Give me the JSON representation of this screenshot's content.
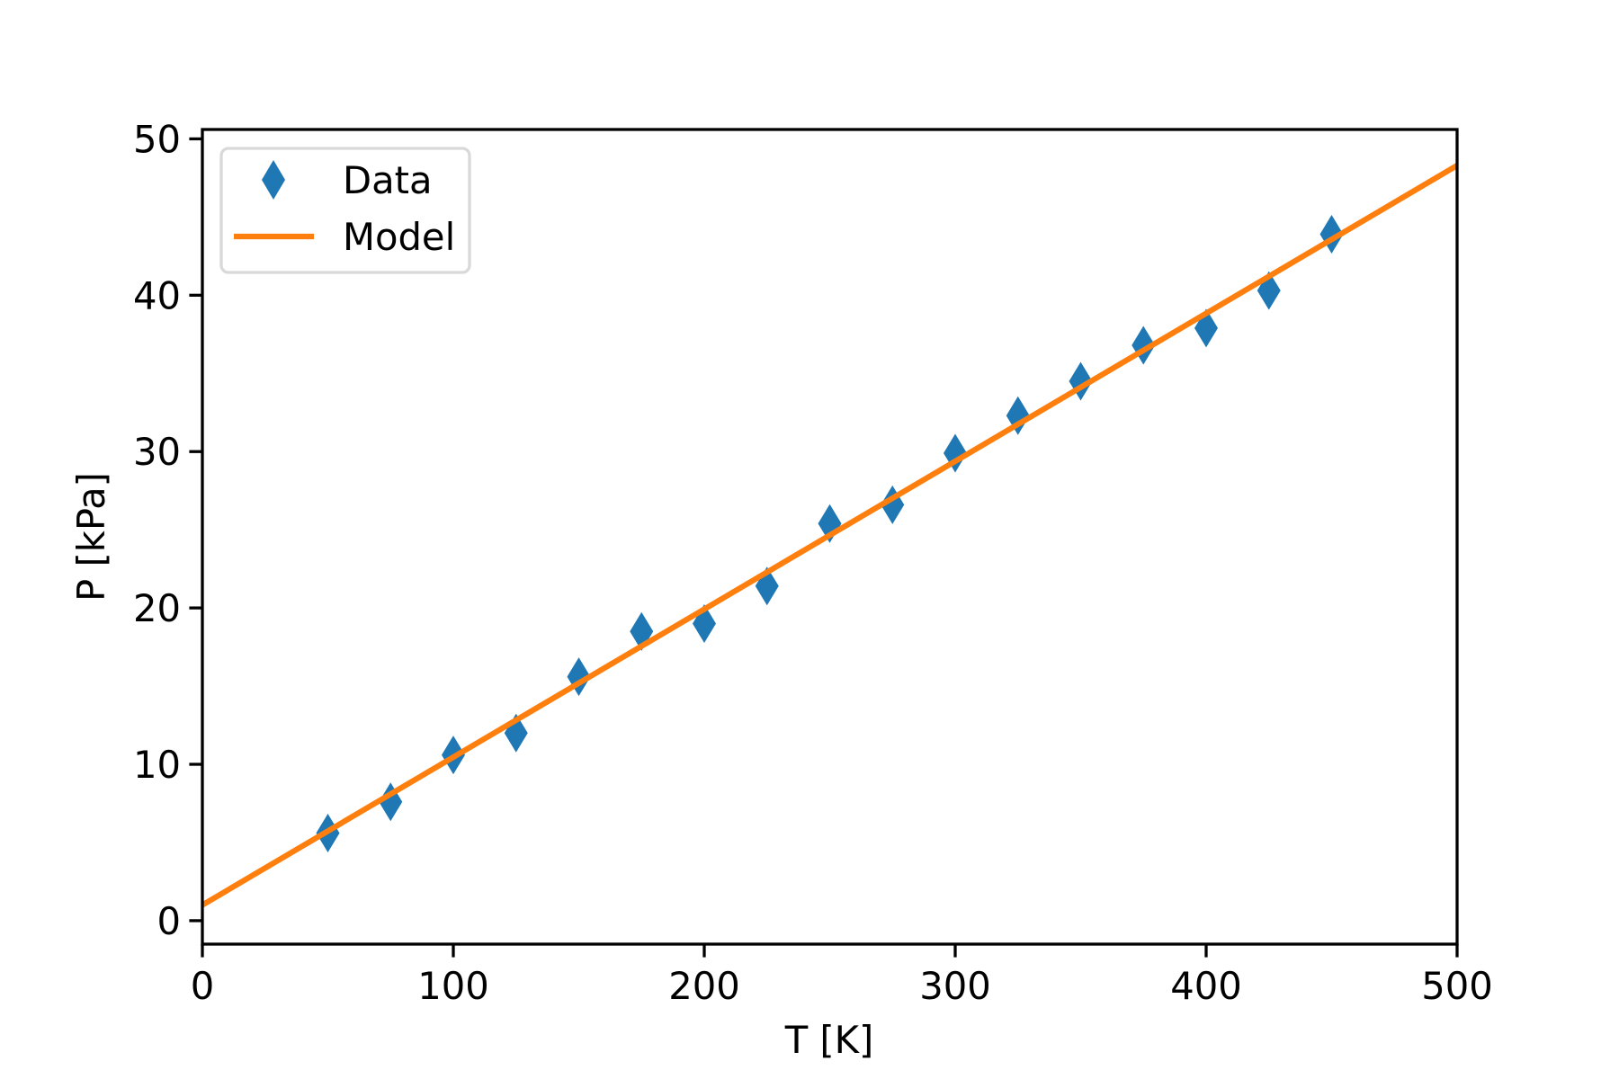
{
  "chart_data": {
    "type": "scatter",
    "title": "",
    "xlabel": "T [K]",
    "ylabel": "P [kPa]",
    "xlim": [
      0,
      500
    ],
    "ylim": [
      -1.5,
      50.6
    ],
    "xticks": [
      0,
      100,
      200,
      300,
      400,
      500
    ],
    "yticks": [
      0,
      10,
      20,
      30,
      40,
      50
    ],
    "grid": false,
    "legend_position": "upper left",
    "series": [
      {
        "name": "Data",
        "kind": "markers",
        "marker": "diamond",
        "color": "#1f77b4",
        "x": [
          50,
          75,
          100,
          125,
          150,
          175,
          200,
          225,
          250,
          275,
          300,
          325,
          350,
          375,
          400,
          425,
          450
        ],
        "y": [
          5.6,
          7.6,
          10.6,
          12.0,
          15.6,
          18.5,
          19.0,
          21.4,
          25.4,
          26.6,
          29.9,
          32.3,
          34.5,
          36.8,
          37.9,
          40.3,
          43.9
        ]
      },
      {
        "name": "Model",
        "kind": "line",
        "color": "#ff7f0e",
        "x": [
          0,
          500
        ],
        "y": [
          1.0,
          48.3
        ]
      }
    ]
  },
  "legend": {
    "items": [
      {
        "label": "Data",
        "symbol": "diamond",
        "color": "#1f77b4"
      },
      {
        "label": "Model",
        "symbol": "line",
        "color": "#ff7f0e"
      }
    ]
  }
}
